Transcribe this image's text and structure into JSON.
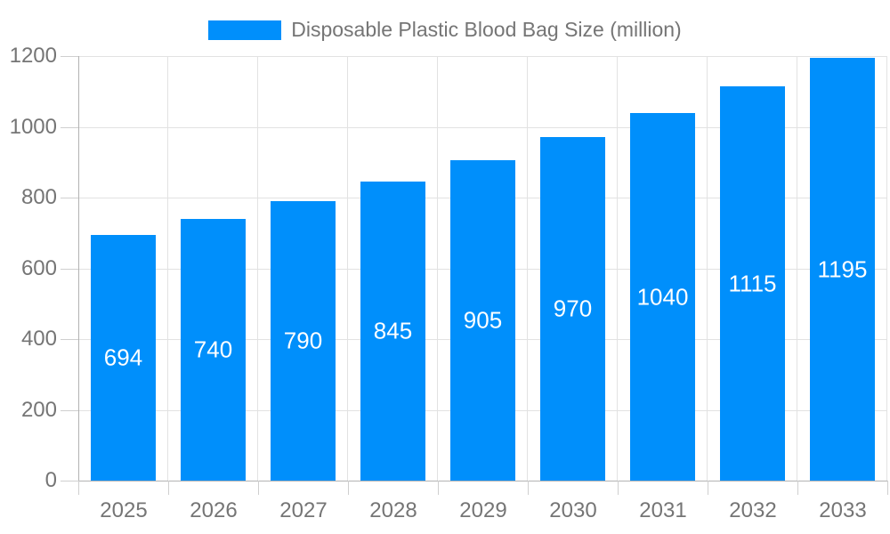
{
  "legend": {
    "label": "Disposable Plastic Blood Bag Size (million)"
  },
  "colors": {
    "bar": "#008FFB",
    "grid": "#e2e2e2",
    "axis_line": "#b3b3b3",
    "tick": "#cfcfcf",
    "axis_label": "#757575",
    "value_label": "#ffffff",
    "legend_text": "#757575",
    "background": "#ffffff"
  },
  "chart_data": {
    "type": "bar",
    "title": "Disposable Plastic Blood Bag Size (million)",
    "categories": [
      "2025",
      "2026",
      "2027",
      "2028",
      "2029",
      "2030",
      "2031",
      "2032",
      "2033"
    ],
    "series": [
      {
        "name": "Disposable Plastic Blood Bag Size (million)",
        "values": [
          694,
          740,
          790,
          845,
          905,
          970,
          1040,
          1115,
          1195
        ]
      }
    ],
    "xlabel": "",
    "ylabel": "",
    "ylim": [
      0,
      1200
    ],
    "yticks": [
      0,
      200,
      400,
      600,
      800,
      1000,
      1200
    ],
    "grid": "both",
    "legend_position": "top",
    "value_labels": "centered-inside-bars"
  }
}
